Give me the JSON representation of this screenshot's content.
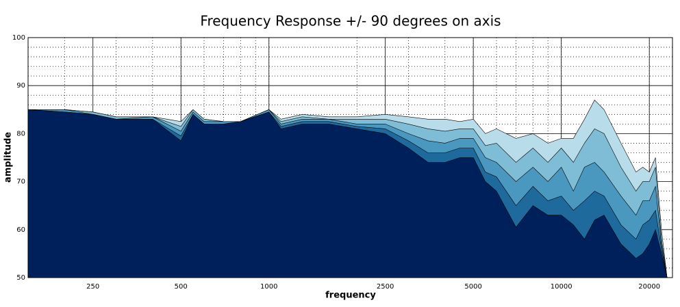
{
  "chart_data": {
    "type": "area",
    "title": "Frequency Response +/- 90 degrees on axis",
    "xlabel": "frequency",
    "ylabel": "amplitude",
    "xscale": "log",
    "grid": true,
    "minor_grid": true,
    "xlim": [
      150,
      24000
    ],
    "ylim": [
      50,
      100
    ],
    "xticks": [
      250,
      500,
      1000,
      2500,
      5000,
      10000,
      20000
    ],
    "yticks": [
      50,
      60,
      70,
      80,
      90,
      100
    ],
    "x": [
      150,
      200,
      250,
      300,
      400,
      500,
      550,
      600,
      700,
      800,
      1000,
      1100,
      1300,
      1600,
      2000,
      2500,
      3000,
      3500,
      4000,
      4500,
      5000,
      5500,
      6000,
      7000,
      8000,
      9000,
      10000,
      11000,
      12000,
      13000,
      14000,
      16000,
      18000,
      19000,
      20000,
      21000,
      22000,
      23000
    ],
    "series": [
      {
        "color": "#b9dcea",
        "values": [
          85,
          85,
          84.5,
          83.5,
          83.5,
          82.5,
          85,
          83,
          82.5,
          82.5,
          85,
          83,
          84,
          83.5,
          83.5,
          84,
          83.5,
          83,
          83,
          82.5,
          83,
          80,
          81,
          79,
          80,
          78,
          79,
          79,
          83,
          87,
          85,
          78,
          72,
          73,
          72,
          75,
          60,
          50
        ]
      },
      {
        "color": "#7fbcd6",
        "values": [
          85,
          85,
          84.5,
          83.5,
          83.5,
          81.5,
          85,
          83,
          82.5,
          82.5,
          85,
          82.5,
          83.5,
          83,
          83,
          83,
          82,
          81,
          80.5,
          81,
          81,
          77.5,
          78,
          74,
          77,
          74,
          77,
          74,
          78,
          81,
          80,
          73,
          68,
          70,
          70,
          73,
          58,
          50
        ]
      },
      {
        "color": "#4a97c0",
        "values": [
          85,
          85,
          84,
          83,
          83.5,
          80.5,
          84.5,
          82.5,
          82.5,
          82.5,
          85,
          82,
          83,
          83,
          82,
          82,
          80,
          78.5,
          78,
          79,
          79,
          75,
          74,
          70,
          73,
          70,
          73,
          68,
          73,
          74,
          72,
          67,
          63,
          66,
          66,
          69,
          57,
          50
        ]
      },
      {
        "color": "#1f6a9c",
        "values": [
          85,
          84.5,
          84,
          83,
          83,
          79.5,
          84,
          82,
          82,
          82.5,
          84.5,
          81.5,
          82.5,
          82.5,
          81.5,
          81,
          78.5,
          76,
          76,
          77,
          77,
          72,
          71,
          65,
          69,
          66,
          67,
          64,
          66,
          68,
          67,
          61,
          58,
          61,
          62,
          64,
          56,
          50
        ]
      },
      {
        "color": "#00205b",
        "values": [
          85,
          84.5,
          84,
          83,
          83,
          78.5,
          84,
          82,
          82,
          82.5,
          84.5,
          81,
          82,
          82,
          81,
          80,
          77,
          74,
          74,
          75,
          75,
          70,
          68,
          60.5,
          65,
          63,
          63,
          61,
          58,
          62,
          63,
          57,
          54,
          55,
          57,
          60,
          55,
          50
        ]
      }
    ]
  }
}
